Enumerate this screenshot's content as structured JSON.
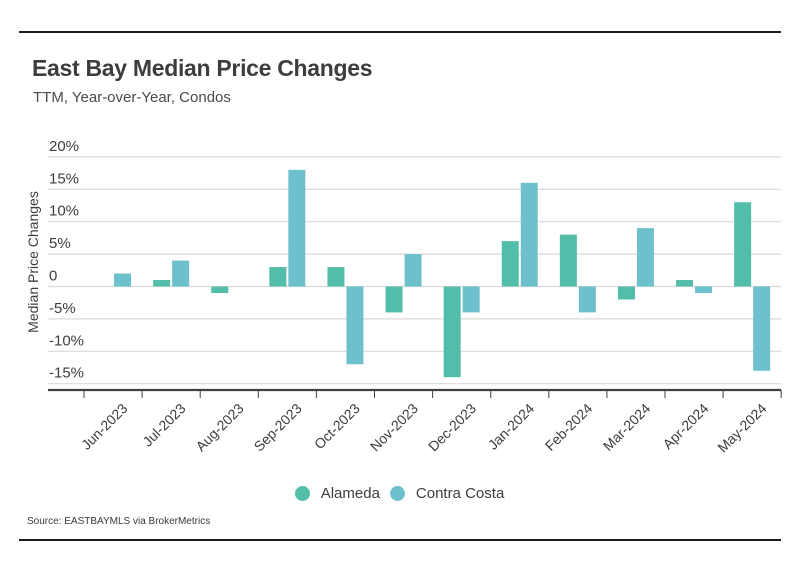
{
  "header": {
    "title": "East Bay Median Price Changes",
    "subtitle": "TTM, Year-over-Year, Condos"
  },
  "footer": {
    "source": "Source:  EASTBAYMLS via BrokerMetrics"
  },
  "colors": {
    "alameda": "#52bea9",
    "contra_costa": "#6cc1cc",
    "grid": "#d9d9d9",
    "axis": "#404040",
    "text": "#3d3d3d"
  },
  "chart_data": {
    "type": "bar",
    "title": "East Bay Median Price Changes",
    "subtitle": "TTM, Year-over-Year, Condos",
    "xlabel": "",
    "ylabel": "Median Price Changes",
    "categories": [
      "Jun-2023",
      "Jul-2023",
      "Aug-2023",
      "Sep-2023",
      "Oct-2023",
      "Nov-2023",
      "Dec-2023",
      "Jan-2024",
      "Feb-2024",
      "Mar-2024",
      "Apr-2024",
      "May-2024"
    ],
    "series": [
      {
        "name": "Alameda",
        "color": "#52bea9",
        "values": [
          0,
          1,
          -1,
          3,
          3,
          -4,
          -14,
          7,
          8,
          -2,
          1,
          13
        ]
      },
      {
        "name": "Contra Costa",
        "color": "#6cc1cc",
        "values": [
          2,
          4,
          0,
          18,
          -12,
          5,
          -4,
          16,
          -4,
          9,
          -1,
          -13
        ]
      }
    ],
    "yticks": [
      20,
      15,
      10,
      5,
      0,
      -5,
      -10,
      -15
    ],
    "ytick_labels": [
      "20%",
      "15%",
      "10%",
      "5%",
      "0",
      "-5%",
      "-10%",
      "-15%"
    ],
    "ylim": [
      -16,
      20
    ],
    "grid": true,
    "legend": "bottom-center",
    "legend_entries": [
      "Alameda",
      "Contra Costa"
    ]
  }
}
